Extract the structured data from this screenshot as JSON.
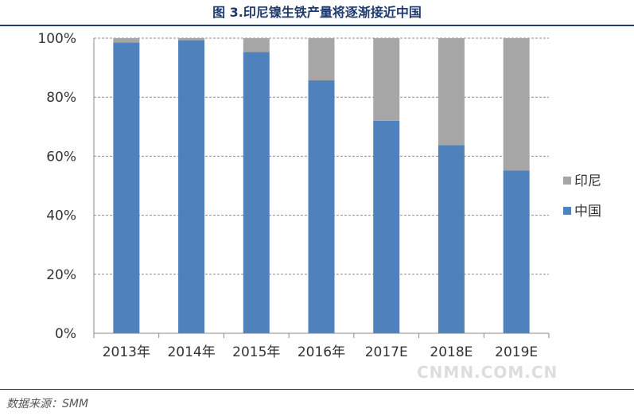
{
  "header": {
    "title": "图 3.印尼镍生铁产量将逐渐接近中国"
  },
  "footer": {
    "source": "数据来源：SMM"
  },
  "watermark": "CNMN.COM.CN",
  "chart_data": {
    "type": "bar",
    "stacked": true,
    "normalized": true,
    "categories": [
      "2013年",
      "2014年",
      "2015年",
      "2016年",
      "2017E",
      "2018E",
      "2019E"
    ],
    "series": [
      {
        "name": "中国",
        "color": "#4f81bd",
        "values": [
          98.5,
          99.3,
          95.3,
          85.7,
          72,
          63.8,
          55.2
        ]
      },
      {
        "name": "印尼",
        "color": "#a6a6a6",
        "values": [
          1.5,
          0.7,
          4.7,
          14.3,
          28,
          36.2,
          44.8
        ]
      }
    ],
    "ylim": [
      0,
      100
    ],
    "yticks": [
      "0%",
      "20%",
      "40%",
      "60%",
      "80%",
      "100%"
    ],
    "grid": true,
    "legend": {
      "position": "right",
      "entries": [
        "印尼",
        "中国"
      ]
    }
  }
}
